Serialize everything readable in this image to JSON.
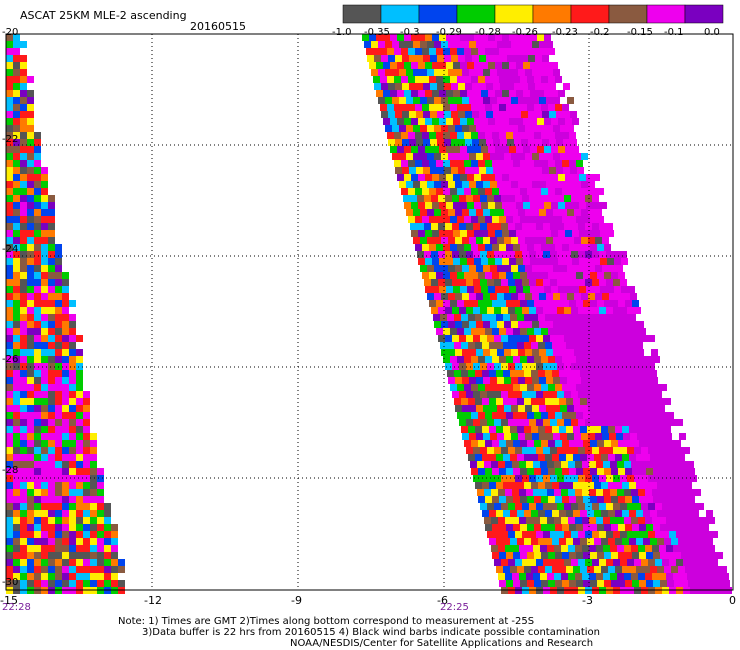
{
  "header": {
    "title": "ASCAT 25KM MLE-2 ascending",
    "date": "20160515"
  },
  "colorbar": {
    "colors": [
      "#555555",
      "#00bfff",
      "#0044ee",
      "#00cc00",
      "#ffee00",
      "#ff7a00",
      "#ff1a1a",
      "#8a5a40",
      "#ee00ee",
      "#7a00c0"
    ],
    "labels": [
      "-1.0",
      "-0.35",
      "-0.3",
      "-0.29",
      "-0.28",
      "-0.26",
      "-0.23",
      "-0.2",
      "-0.15",
      "-0.1",
      "0.0"
    ]
  },
  "map": {
    "x_ticks": [
      "-15",
      "-12",
      "-9",
      "-6",
      "-3",
      "0"
    ],
    "y_ticks": [
      "-20",
      "-22",
      "-24",
      "-26",
      "-28",
      "-30"
    ],
    "time_labels": [
      "22:28",
      "22:25"
    ]
  },
  "notes": [
    "Note: 1) Times are GMT 2)Times along bottom correspond to measurement at -25S",
    "3)Data buffer is 22 hrs from 20160515 4) Black wind barbs indicate possible contamination",
    "NOAA/NESDIS/Center for Satellite Applications and Research"
  ]
}
